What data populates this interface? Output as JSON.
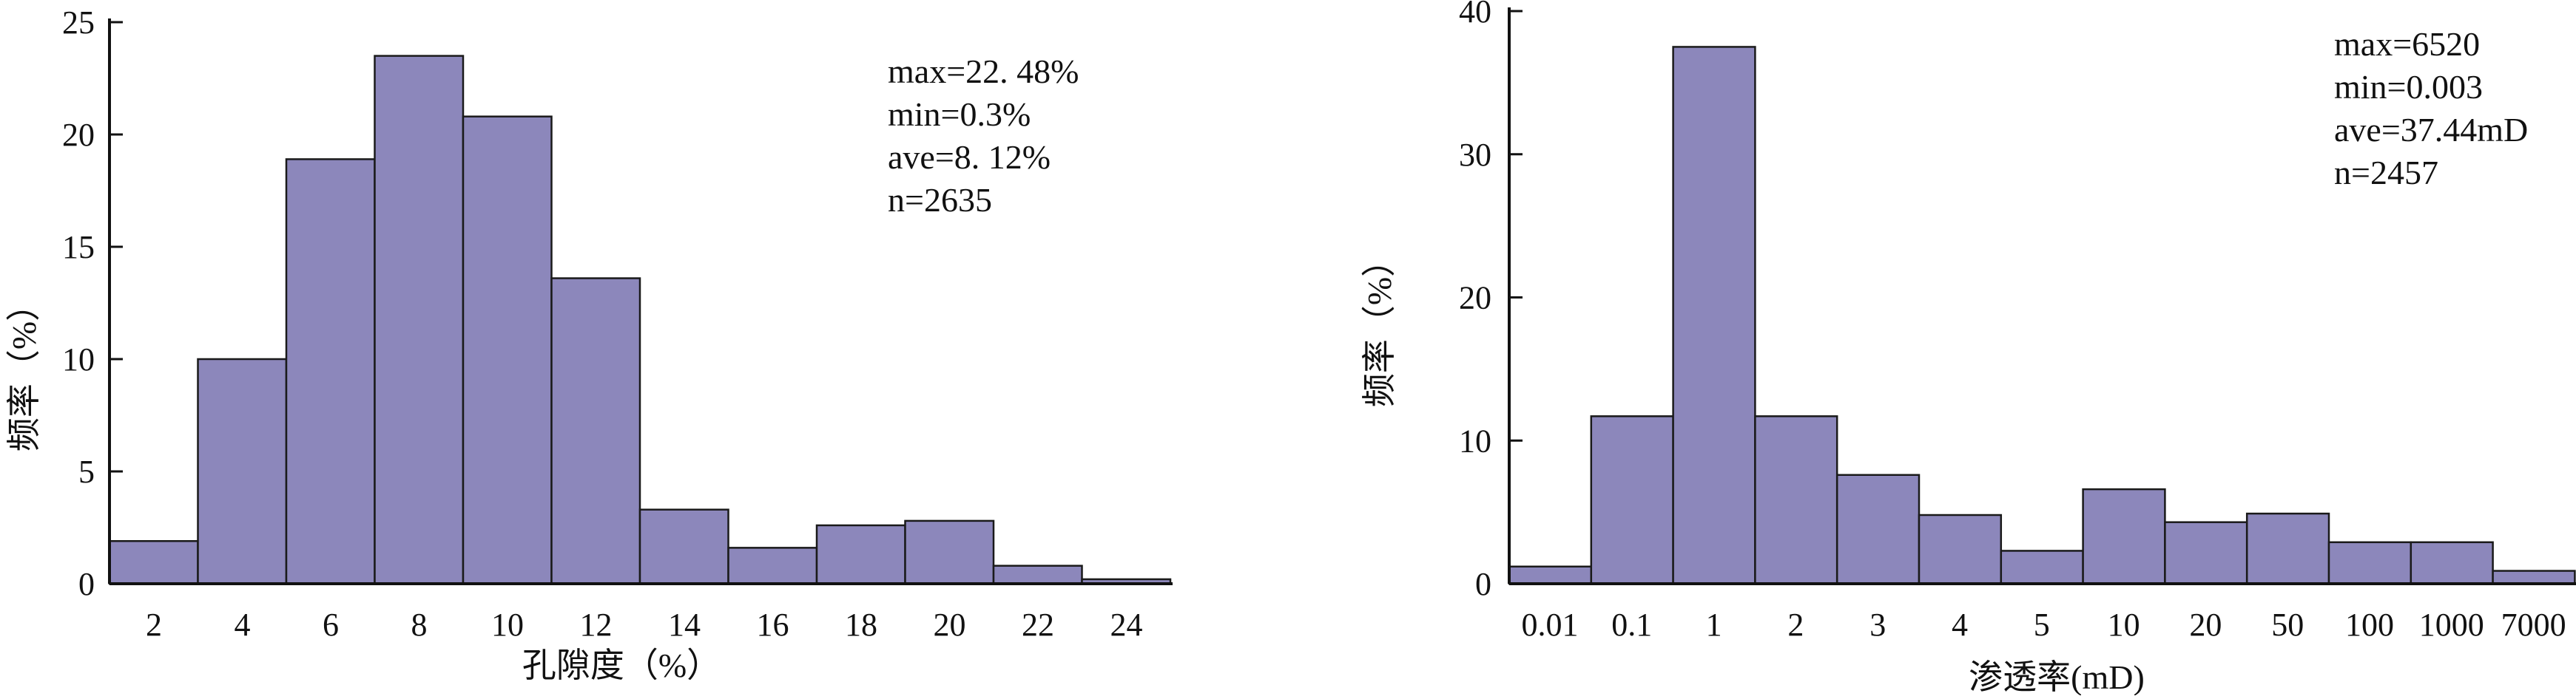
{
  "chart_data": [
    {
      "type": "bar",
      "xlabel": "孔隙度（%）",
      "ylabel": "频率（%）",
      "ylim": [
        0,
        25
      ],
      "yticks": [
        "0",
        "5",
        "10",
        "15",
        "20",
        "25"
      ],
      "xticks": [
        "2",
        "4",
        "6",
        "8",
        "10",
        "12",
        "14",
        "16",
        "18",
        "20",
        "22",
        "24"
      ],
      "values": [
        1.9,
        10.0,
        18.9,
        23.5,
        20.8,
        13.6,
        3.3,
        1.6,
        2.6,
        2.8,
        0.8,
        0.2
      ],
      "annotations": [
        "max=22. 48%",
        "min=0.3%",
        "ave=8. 12%",
        "n=2635"
      ],
      "bar_color": "#8c87bb"
    },
    {
      "type": "bar",
      "xlabel": "渗透率(mD)",
      "ylabel": "频率（%）",
      "ylim": [
        0,
        40
      ],
      "yticks": [
        "0",
        "10",
        "20",
        "30",
        "40"
      ],
      "xticks": [
        "0.01",
        "0.1",
        "1",
        "2",
        "3",
        "4",
        "5",
        "10",
        "20",
        "50",
        "100",
        "1000",
        "7000"
      ],
      "values": [
        1.2,
        11.7,
        37.5,
        11.7,
        7.6,
        4.8,
        2.3,
        6.6,
        4.3,
        4.9,
        2.9,
        2.9,
        0.9
      ],
      "annotations": [
        "max=6520",
        "min=0.003",
        "ave=37.44mD",
        "n=2457"
      ],
      "bar_color": "#8c87bb"
    }
  ]
}
